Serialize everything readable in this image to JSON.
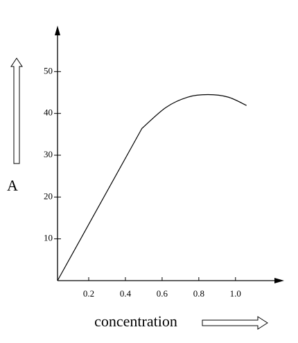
{
  "chart_data": {
    "type": "line",
    "xlabel": "concentration",
    "ylabel": "A",
    "x": [
      0.03,
      0.49,
      0.62,
      0.74,
      0.85,
      0.96,
      1.06
    ],
    "series": [
      {
        "color": "#000000",
        "values": [
          0,
          36.4,
          41.4,
          43.9,
          44.5,
          43.9,
          41.9
        ]
      }
    ],
    "xlim": [
      0.03,
      1.25
    ],
    "ylim": [
      0,
      60
    ],
    "xticks": [
      0.2,
      0.4,
      0.6,
      0.8,
      {
        "value": 1,
        "label": "1.0"
      }
    ],
    "yticks": [
      10,
      20,
      30,
      40,
      50
    ]
  }
}
